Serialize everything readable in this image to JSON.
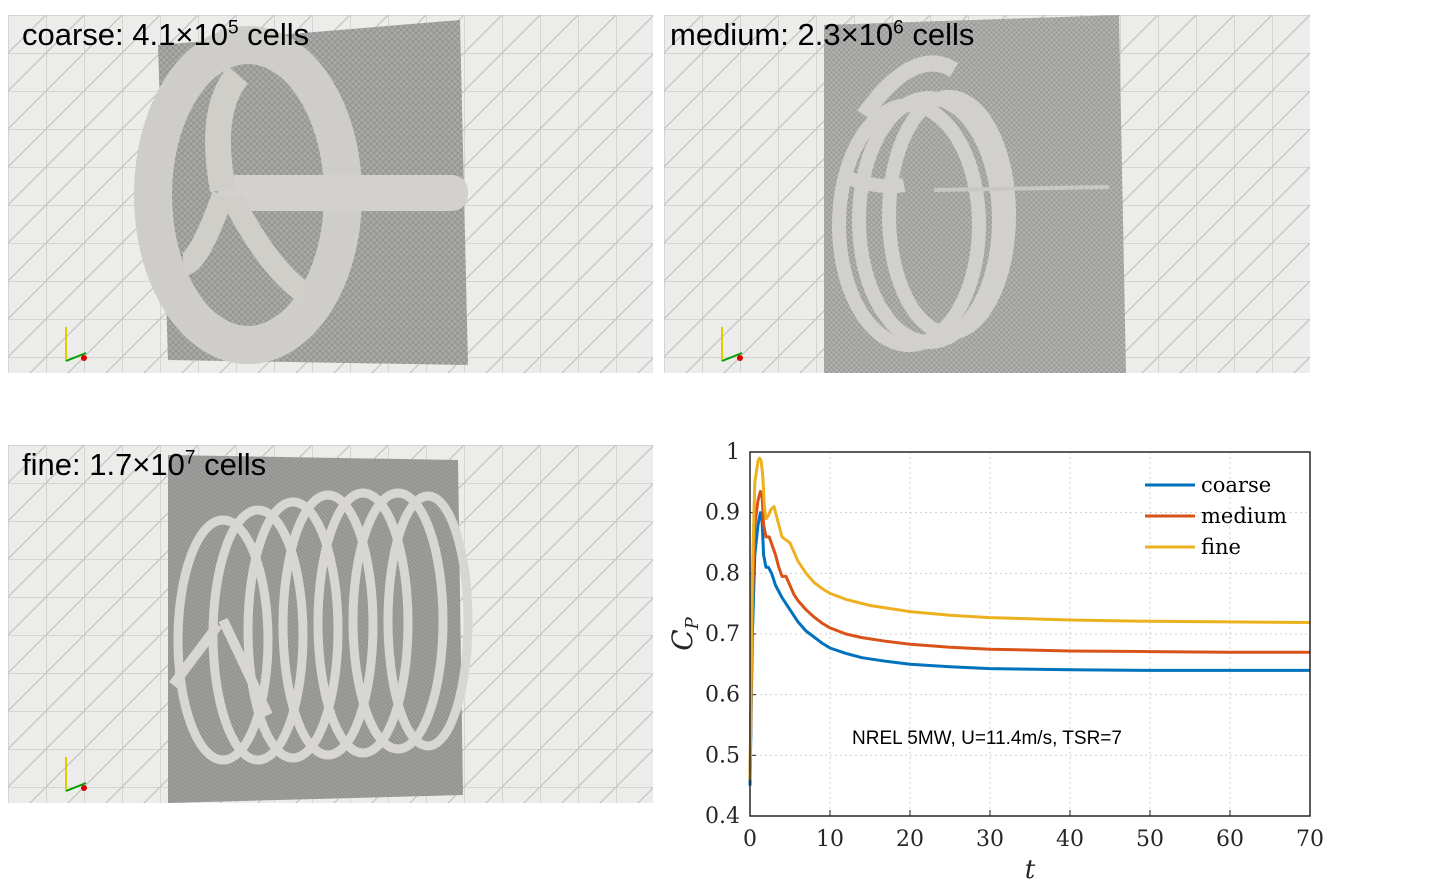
{
  "panels": [
    {
      "name": "coarse",
      "label_prefix": "coarse: 4.1×10",
      "label_exp": "5",
      "label_suffix": " cells"
    },
    {
      "name": "medium",
      "label_prefix": "medium: 2.3×10",
      "label_exp": "6",
      "label_suffix": " cells"
    },
    {
      "name": "fine",
      "label_prefix": "fine: 1.7×10",
      "label_exp": "7",
      "label_suffix": " cells"
    }
  ],
  "chart_data": {
    "type": "line",
    "title": "",
    "xlabel": "t",
    "ylabel": "C_P",
    "xlim": [
      0,
      70
    ],
    "ylim": [
      0.4,
      1.0
    ],
    "xticks": [
      "0",
      "10",
      "20",
      "30",
      "40",
      "50",
      "60",
      "70"
    ],
    "yticks": [
      "0.4",
      "0.5",
      "0.6",
      "0.7",
      "0.8",
      "0.9",
      "1"
    ],
    "grid": true,
    "legend_position": "top-right",
    "annotation": "NREL 5MW, U=11.4m/s, TSR=7",
    "series": [
      {
        "name": "coarse",
        "color": "#0072BD",
        "x": [
          0,
          0.3,
          0.6,
          1,
          1.3,
          1.5,
          1.7,
          2,
          2.3,
          2.7,
          3.2,
          3.6,
          4,
          4.5,
          5,
          5.5,
          6,
          7,
          8,
          9,
          10,
          12,
          14,
          17,
          20,
          25,
          30,
          40,
          50,
          60,
          70
        ],
        "y": [
          0.45,
          0.7,
          0.83,
          0.88,
          0.9,
          0.89,
          0.83,
          0.81,
          0.81,
          0.8,
          0.78,
          0.77,
          0.76,
          0.75,
          0.74,
          0.73,
          0.72,
          0.705,
          0.695,
          0.685,
          0.677,
          0.668,
          0.661,
          0.655,
          0.65,
          0.646,
          0.643,
          0.641,
          0.64,
          0.64,
          0.64
        ]
      },
      {
        "name": "medium",
        "color": "#D95319",
        "x": [
          0,
          0.3,
          0.6,
          1,
          1.3,
          1.5,
          1.7,
          2,
          2.4,
          2.8,
          3.2,
          3.6,
          4,
          4.5,
          5,
          5.5,
          6,
          7,
          8,
          9,
          10,
          12,
          14,
          17,
          20,
          25,
          30,
          40,
          50,
          60,
          70
        ],
        "y": [
          0.46,
          0.75,
          0.88,
          0.92,
          0.935,
          0.93,
          0.88,
          0.86,
          0.86,
          0.845,
          0.83,
          0.81,
          0.795,
          0.795,
          0.78,
          0.765,
          0.755,
          0.74,
          0.728,
          0.718,
          0.71,
          0.7,
          0.694,
          0.688,
          0.683,
          0.678,
          0.675,
          0.672,
          0.671,
          0.67,
          0.67
        ]
      },
      {
        "name": "fine",
        "color": "#EDB120",
        "x": [
          0,
          0.3,
          0.6,
          1,
          1.2,
          1.4,
          1.6,
          1.8,
          2,
          2.3,
          2.6,
          3,
          3.5,
          4,
          4.5,
          5,
          5.5,
          6,
          7,
          8,
          9,
          10,
          12,
          15,
          20,
          25,
          30,
          40,
          50,
          60,
          70
        ],
        "y": [
          0.46,
          0.8,
          0.95,
          0.985,
          0.99,
          0.985,
          0.96,
          0.91,
          0.89,
          0.895,
          0.905,
          0.91,
          0.885,
          0.86,
          0.855,
          0.85,
          0.835,
          0.82,
          0.8,
          0.785,
          0.775,
          0.767,
          0.757,
          0.747,
          0.737,
          0.731,
          0.727,
          0.723,
          0.721,
          0.72,
          0.719
        ]
      }
    ]
  }
}
